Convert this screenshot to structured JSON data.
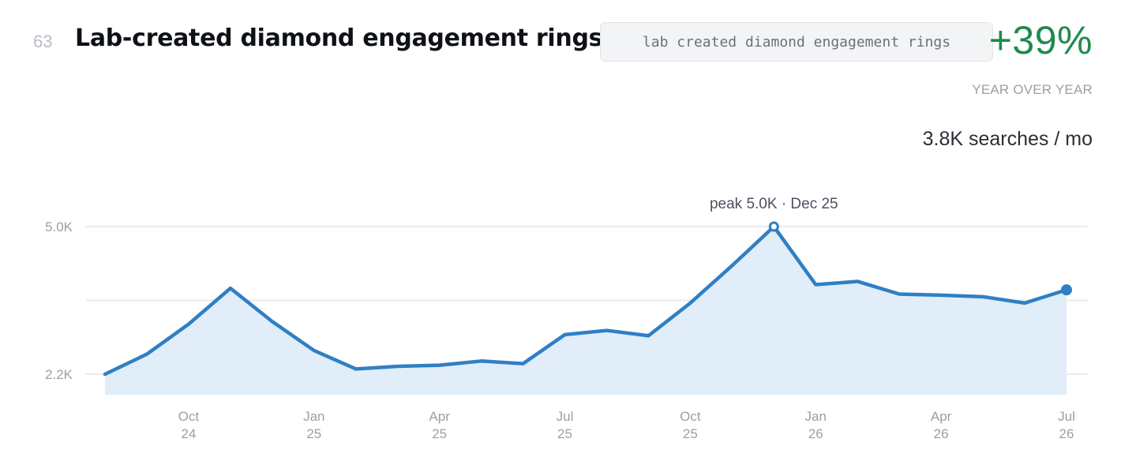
{
  "header": {
    "rank": "63",
    "title": "Lab-created diamond engagement rings",
    "keyword": "lab created diamond engagement rings",
    "growth": "+39%",
    "growth_label": "YEAR OVER YEAR",
    "volume": "3.8K searches / mo"
  },
  "colors": {
    "line": "#2f7fc5",
    "area": "#e1edf8",
    "growth": "#1f8a4c",
    "grid": "#e8eaee"
  },
  "chart_data": {
    "type": "area",
    "x": [
      "Aug 24",
      "Sep 24",
      "Oct 24",
      "Nov 24",
      "Dec 24",
      "Jan 25",
      "Feb 25",
      "Mar 25",
      "Apr 25",
      "May 25",
      "Jun 25",
      "Jul 25",
      "Aug 25",
      "Sep 25",
      "Oct 25",
      "Nov 25",
      "Dec 25",
      "Jan 26",
      "Feb 26",
      "Mar 26",
      "Apr 26",
      "May 26",
      "Jun 26",
      "Jul 26"
    ],
    "series": [
      {
        "values": [
          2.2,
          2.58,
          3.15,
          3.83,
          3.2,
          2.65,
          2.3,
          2.35,
          2.37,
          2.45,
          2.4,
          2.95,
          3.03,
          2.93,
          3.55,
          4.26,
          5.0,
          3.9,
          3.96,
          3.72,
          3.7,
          3.67,
          3.55,
          3.8
        ]
      }
    ],
    "y_ticks": [
      {
        "value": 5.0,
        "label": "5.0K"
      },
      {
        "value": 2.2,
        "label": "2.2K"
      }
    ],
    "y_gridlines": [
      5.0,
      3.6,
      2.2
    ],
    "x_ticks": [
      {
        "index": 2,
        "month": "Oct",
        "year": "24"
      },
      {
        "index": 5,
        "month": "Jan",
        "year": "25"
      },
      {
        "index": 8,
        "month": "Apr",
        "year": "25"
      },
      {
        "index": 11,
        "month": "Jul",
        "year": "25"
      },
      {
        "index": 14,
        "month": "Oct",
        "year": "25"
      },
      {
        "index": 17,
        "month": "Jan",
        "year": "26"
      },
      {
        "index": 20,
        "month": "Apr",
        "year": "26"
      },
      {
        "index": 23,
        "month": "Jul",
        "year": "26"
      }
    ],
    "peak": {
      "index": 16,
      "label": "peak 5.0K · Dec 25"
    },
    "ylim": [
      1.8,
      5.0
    ],
    "grid": true,
    "legend": "none"
  }
}
